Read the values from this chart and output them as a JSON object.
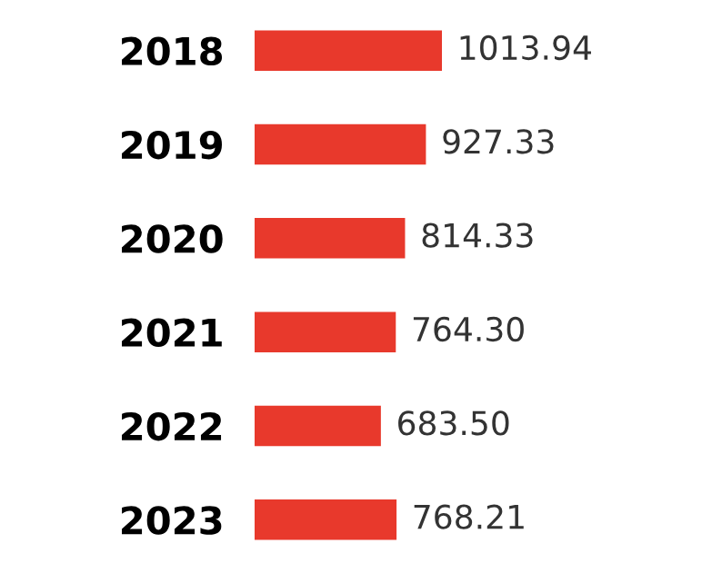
{
  "chart_data": {
    "type": "bar",
    "orientation": "horizontal",
    "categories": [
      "2018",
      "2019",
      "2020",
      "2021",
      "2022",
      "2023"
    ],
    "values": [
      1013.94,
      927.33,
      814.33,
      764.3,
      683.5,
      768.21
    ],
    "value_labels": [
      "1013.94",
      "927.33",
      "814.33",
      "764.30",
      "683.50",
      "768.21"
    ],
    "color": "#e8392c",
    "grid": false,
    "legend": false
  }
}
